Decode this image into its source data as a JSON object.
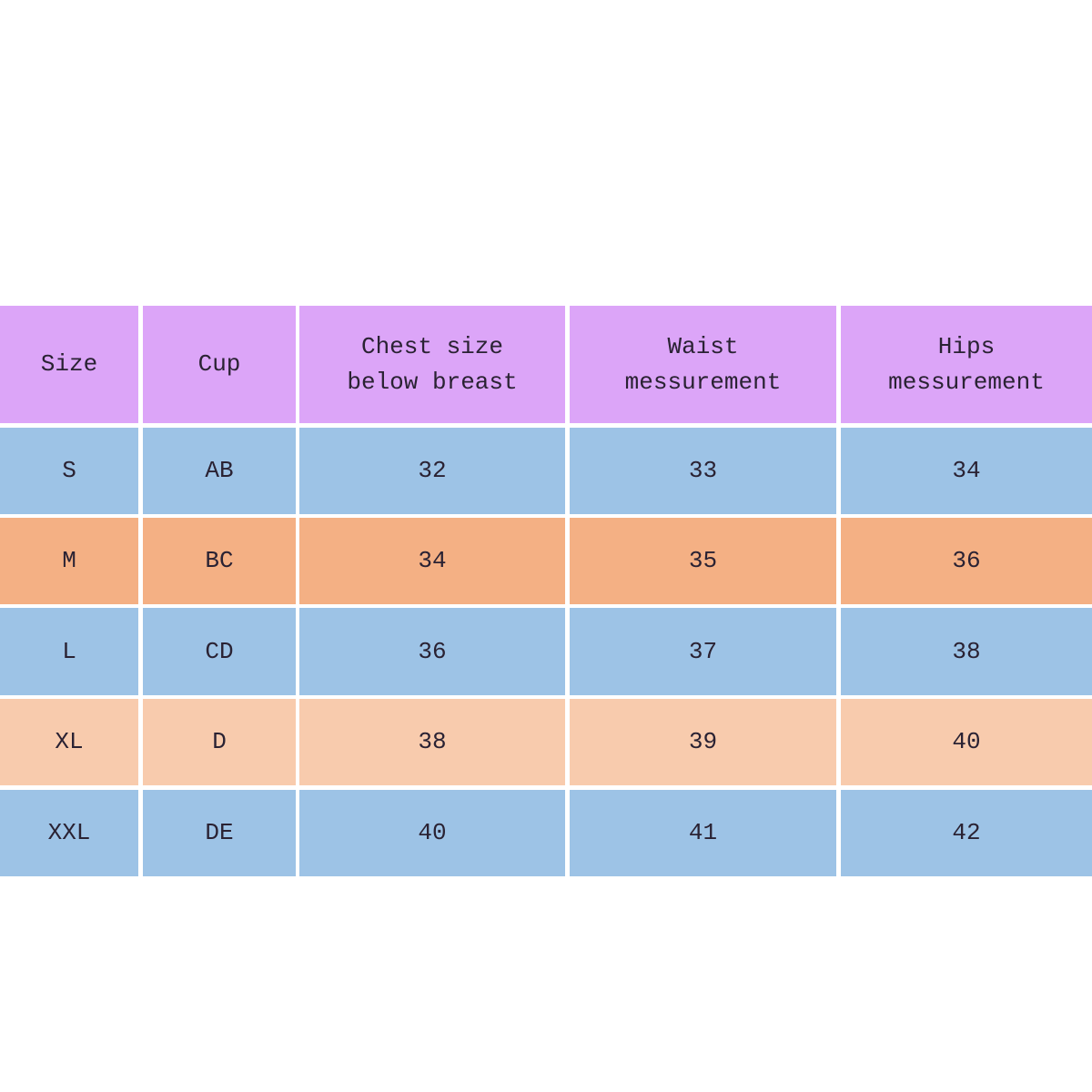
{
  "colors": {
    "header": "#dca5f8",
    "row_blue": "#9dc3e6",
    "row_orange": "#f4b084",
    "row_peach": "#f8cbad"
  },
  "header": [
    "Size",
    "Cup",
    "Chest  size\nbelow breast",
    "Waist\nmessurement",
    "Hips\nmessurement"
  ],
  "rows": [
    {
      "cells": [
        "S",
        "AB",
        "32",
        "33",
        "34"
      ],
      "color": "#9dc3e6"
    },
    {
      "cells": [
        "M",
        "BC",
        "34",
        "35",
        "36"
      ],
      "color": "#f4b084"
    },
    {
      "cells": [
        "L",
        "CD",
        "36",
        "37",
        "38"
      ],
      "color": "#9dc3e6"
    },
    {
      "cells": [
        "XL",
        "D",
        "38",
        "39",
        "40"
      ],
      "color": "#f8cbad"
    },
    {
      "cells": [
        "XXL",
        "DE",
        "40",
        "41",
        "42"
      ],
      "color": "#9dc3e6"
    }
  ]
}
